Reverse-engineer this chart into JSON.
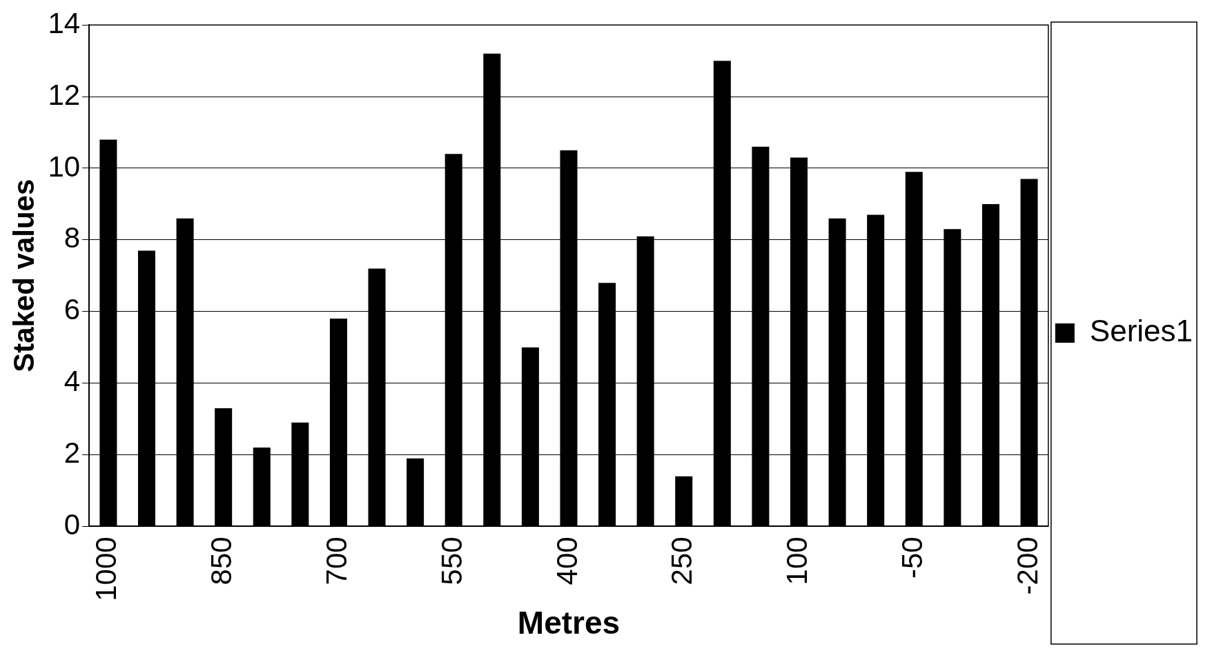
{
  "chart_data": {
    "type": "bar",
    "xlabel": "Metres",
    "ylabel": "Staked values",
    "categories": [
      "1000",
      null,
      null,
      "850",
      null,
      null,
      "700",
      null,
      null,
      "550",
      null,
      null,
      "400",
      null,
      null,
      "250",
      null,
      null,
      "100",
      null,
      null,
      "-50",
      null,
      null,
      "-200"
    ],
    "series": [
      {
        "name": "Series1",
        "color": "#000000",
        "values": [
          10.8,
          7.7,
          8.6,
          3.3,
          2.2,
          2.9,
          5.8,
          7.2,
          1.9,
          10.4,
          13.2,
          5.0,
          10.5,
          6.8,
          8.1,
          1.4,
          13.0,
          10.6,
          10.3,
          8.6,
          8.7,
          9.9,
          8.3,
          9.0,
          9.7
        ]
      }
    ],
    "ylim": [
      0,
      14
    ],
    "yticks": [
      0,
      2,
      4,
      6,
      8,
      10,
      12,
      14
    ],
    "grid": "y",
    "legend": "right"
  }
}
